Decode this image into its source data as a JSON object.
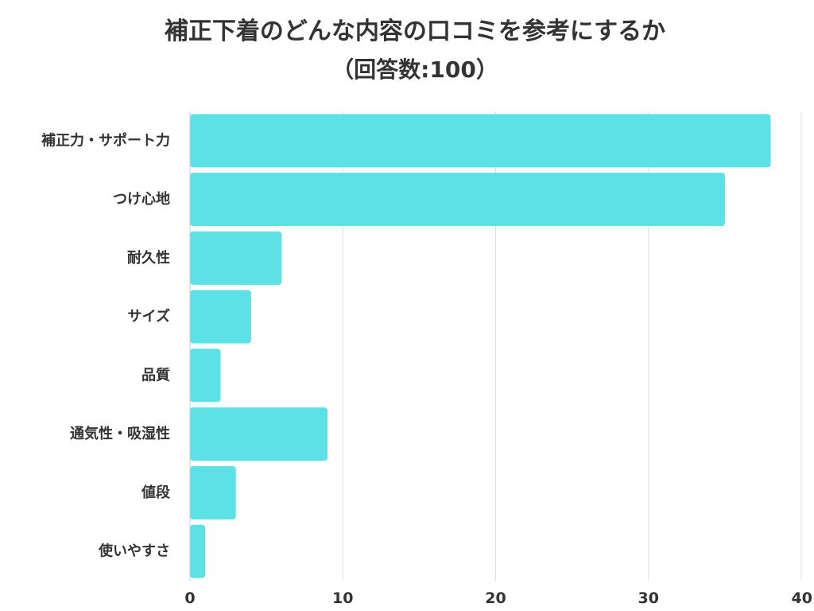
{
  "chart_data": {
    "type": "bar",
    "orientation": "horizontal",
    "title": "補正下着のどんな内容の口コミを参考にするか",
    "subtitle": "（回答数:100）",
    "categories": [
      "補正力・サポート力",
      "つけ心地",
      "耐久性",
      "サイズ",
      "品質",
      "通気性・吸湿性",
      "値段",
      "使いやすさ"
    ],
    "values": [
      38,
      35,
      6,
      4,
      2,
      9,
      3,
      1
    ],
    "xlim": [
      0,
      40
    ],
    "x_ticks": [
      "0",
      "10",
      "20",
      "30",
      "40"
    ],
    "grid": true,
    "legend": "none",
    "bar_color": "#5ce1e6",
    "grid_color": "#dddddd",
    "text_color": "#333333"
  }
}
